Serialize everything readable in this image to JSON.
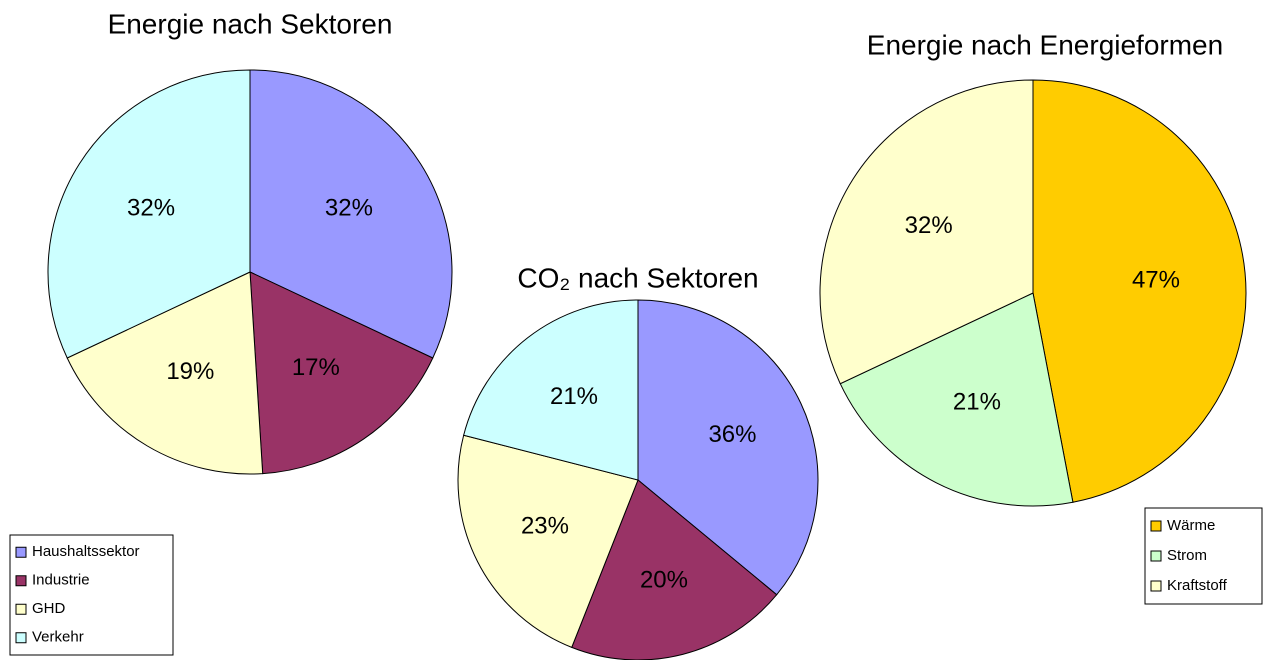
{
  "chart_data": [
    {
      "type": "pie",
      "title": "Energie nach Sektoren",
      "categories": [
        "Haushaltssektor",
        "Industrie",
        "GHD",
        "Verkehr"
      ],
      "values": [
        32,
        17,
        19,
        32
      ],
      "value_labels": [
        "32%",
        "17%",
        "19%",
        "32%"
      ],
      "colors": [
        "#9999ff",
        "#993366",
        "#ffffcc",
        "#ccffff"
      ],
      "legend": "lower left"
    },
    {
      "type": "pie",
      "title": "CO₂ nach Sektoren",
      "values": [
        36,
        20,
        23,
        21
      ],
      "value_labels": [
        "36%",
        "20%",
        "23%",
        "21%"
      ],
      "colors": [
        "#9999ff",
        "#993366",
        "#ffffcc",
        "#ccffff"
      ]
    },
    {
      "type": "pie",
      "title": "Energie nach Energieformen",
      "categories": [
        "Wärme",
        "Strom",
        "Kraftstoff"
      ],
      "values": [
        47,
        21,
        32
      ],
      "value_labels": [
        "47%",
        "21%",
        "32%"
      ],
      "colors": [
        "#ffcc00",
        "#ccffcc",
        "#ffffcc"
      ],
      "legend": "lower right"
    }
  ]
}
